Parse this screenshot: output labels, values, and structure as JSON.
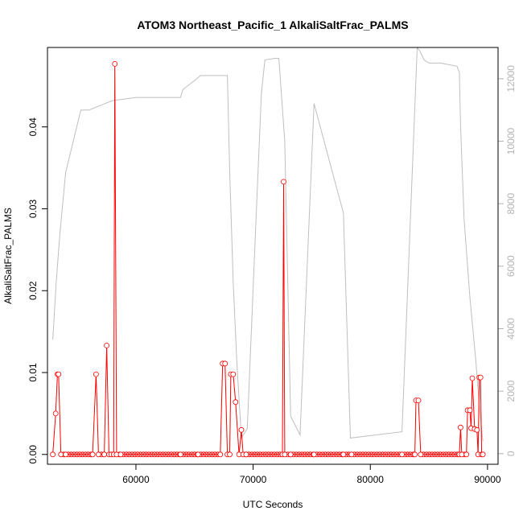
{
  "chart_data": {
    "type": "line",
    "title": "ATOM3 Northeast_Pacific_1 AlkaliSaltFrac_PALMS",
    "xlabel": "UTC Seconds",
    "ylabel": "AlkaliSaltFrac_PALMS",
    "y2label": "",
    "xlim": [
      52450,
      90900
    ],
    "ylim": [
      -0.0012,
      0.0497
    ],
    "y2lim": [
      -340,
      13000
    ],
    "x_ticks": [
      {
        "value": 60000,
        "label": "60000"
      },
      {
        "value": 70000,
        "label": "70000"
      },
      {
        "value": 80000,
        "label": "80000"
      },
      {
        "value": 90000,
        "label": "90000"
      }
    ],
    "y_ticks": [
      {
        "value": 0.0,
        "label": "0.00"
      },
      {
        "value": 0.01,
        "label": "0.01"
      },
      {
        "value": 0.02,
        "label": "0.02"
      },
      {
        "value": 0.03,
        "label": "0.03"
      },
      {
        "value": 0.04,
        "label": "0.04"
      }
    ],
    "y2_ticks": [
      {
        "value": 0,
        "label": "0"
      },
      {
        "value": 2000,
        "label": "2000"
      },
      {
        "value": 4000,
        "label": "4000"
      },
      {
        "value": 6000,
        "label": "6000"
      },
      {
        "value": 8000,
        "label": "8000"
      },
      {
        "value": 10000,
        "label": "10000"
      },
      {
        "value": 12000,
        "label": "12000"
      }
    ],
    "colors": {
      "series": "#ff0000",
      "altitude": "#bebebe",
      "axis": "#000000",
      "axis2": "#b3b3b3"
    },
    "series": [
      {
        "values_x": [
          52900,
          53150,
          53300,
          53400,
          53600,
          54000,
          56300,
          56600,
          56800,
          57300,
          57500,
          57700,
          57900,
          58100,
          58200,
          58350,
          58700,
          63800,
          65300,
          67200,
          67400,
          67600,
          67800,
          68000,
          68100,
          68300,
          68500,
          68800,
          69000,
          69150,
          69400,
          72500,
          72600,
          72700,
          73200,
          75200,
          77700,
          78400,
          82700,
          83800,
          83900,
          84100,
          84300,
          87600,
          87700,
          87800,
          88200,
          88300,
          88500,
          88600,
          88700,
          88900,
          89100,
          89200,
          89300,
          89400,
          89500,
          89600
        ],
        "values_y": [
          0.0,
          0.005,
          0.0098,
          0.0098,
          0.0,
          0.0,
          0.0,
          0.0098,
          0.0,
          0.0,
          0.0133,
          0.0,
          0.0,
          0.0,
          0.0477,
          0.0,
          0.0,
          0.0,
          0.0,
          0.0,
          0.0111,
          0.0111,
          0.0,
          0.0,
          0.0098,
          0.0098,
          0.0064,
          0.0,
          0.003,
          0.0,
          0.0,
          0.0,
          0.0333,
          0.0,
          0.0,
          0.0,
          0.0,
          0.0,
          0.0,
          0.0,
          0.0066,
          0.0066,
          0.0,
          0.0,
          0.0033,
          0.0,
          0.0,
          0.0054,
          0.0054,
          0.0032,
          0.0093,
          0.0031,
          0.003,
          0.0,
          0.0094,
          0.0094,
          0.0,
          0.0
        ]
      }
    ],
    "altitude": {
      "x": [
        52900,
        53200,
        53500,
        54000,
        55300,
        56000,
        58000,
        59000,
        60000,
        62000,
        63800,
        64000,
        65200,
        65500,
        67800,
        68000,
        68300,
        68600,
        69000,
        69500,
        70300,
        70700,
        71000,
        71800,
        72200,
        72700,
        73200,
        74000,
        75200,
        77700,
        78300,
        82700,
        84000,
        84200,
        84600,
        85000,
        86000,
        87400,
        87600,
        87700,
        88000,
        88500,
        89000,
        89300,
        89600
      ],
      "y": [
        3650,
        5500,
        7000,
        9000,
        11000,
        11000,
        11300,
        11350,
        11400,
        11400,
        11400,
        11650,
        12000,
        12100,
        12100,
        9000,
        5500,
        3000,
        500,
        800,
        8000,
        11500,
        12600,
        12650,
        12650,
        10000,
        1200,
        600,
        11200,
        7700,
        500,
        700,
        13000,
        12900,
        12600,
        12500,
        12500,
        12400,
        12200,
        10500,
        7500,
        5000,
        3000,
        1500,
        400
      ]
    }
  }
}
